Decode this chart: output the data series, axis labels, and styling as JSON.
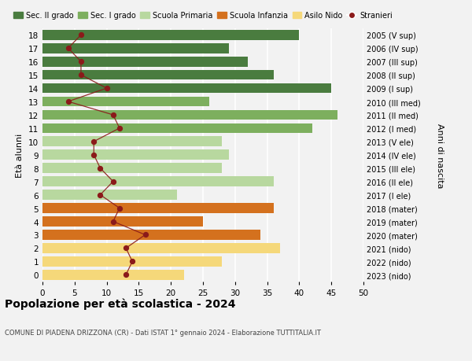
{
  "ages": [
    18,
    17,
    16,
    15,
    14,
    13,
    12,
    11,
    10,
    9,
    8,
    7,
    6,
    5,
    4,
    3,
    2,
    1,
    0
  ],
  "bar_values": [
    40,
    29,
    32,
    36,
    45,
    26,
    46,
    42,
    28,
    29,
    28,
    36,
    21,
    36,
    25,
    34,
    37,
    28,
    22
  ],
  "stranieri": [
    6,
    4,
    6,
    6,
    10,
    4,
    11,
    12,
    8,
    8,
    9,
    11,
    9,
    12,
    11,
    16,
    13,
    14,
    13
  ],
  "right_labels": [
    "2005 (V sup)",
    "2006 (IV sup)",
    "2007 (III sup)",
    "2008 (II sup)",
    "2009 (I sup)",
    "2010 (III med)",
    "2011 (II med)",
    "2012 (I med)",
    "2013 (V ele)",
    "2014 (IV ele)",
    "2015 (III ele)",
    "2016 (II ele)",
    "2017 (I ele)",
    "2018 (mater)",
    "2019 (mater)",
    "2020 (mater)",
    "2021 (nido)",
    "2022 (nido)",
    "2023 (nido)"
  ],
  "bar_colors_by_age": {
    "18": "#4a7c3f",
    "17": "#4a7c3f",
    "16": "#4a7c3f",
    "15": "#4a7c3f",
    "14": "#4a7c3f",
    "13": "#7daf5e",
    "12": "#7daf5e",
    "11": "#7daf5e",
    "10": "#b8d89f",
    "9": "#b8d89f",
    "8": "#b8d89f",
    "7": "#b8d89f",
    "6": "#b8d89f",
    "5": "#d4711e",
    "4": "#d4711e",
    "3": "#d4711e",
    "2": "#f5d87a",
    "1": "#f5d87a",
    "0": "#f5d87a"
  },
  "stranieri_color": "#8b1a1a",
  "stranieri_line_color": "#8b1a1a",
  "ylabel": "Età alunni",
  "right_ylabel": "Anni di nascita",
  "title": "Popolazione per età scolastica - 2024",
  "subtitle": "COMUNE DI PIADENA DRIZZONA (CR) - Dati ISTAT 1° gennaio 2024 - Elaborazione TUTTITALIA.IT",
  "legend_items": [
    {
      "label": "Sec. II grado",
      "color": "#4a7c3f",
      "type": "patch"
    },
    {
      "label": "Sec. I grado",
      "color": "#7daf5e",
      "type": "patch"
    },
    {
      "label": "Scuola Primaria",
      "color": "#b8d89f",
      "type": "patch"
    },
    {
      "label": "Scuola Infanzia",
      "color": "#d4711e",
      "type": "patch"
    },
    {
      "label": "Asilo Nido",
      "color": "#f5d87a",
      "type": "patch"
    },
    {
      "label": "Stranieri",
      "color": "#8b1a1a",
      "type": "dot"
    }
  ],
  "bg_color": "#f2f2f2",
  "xticks": [
    0,
    5,
    10,
    15,
    20,
    25,
    30,
    35,
    40,
    45,
    50
  ]
}
